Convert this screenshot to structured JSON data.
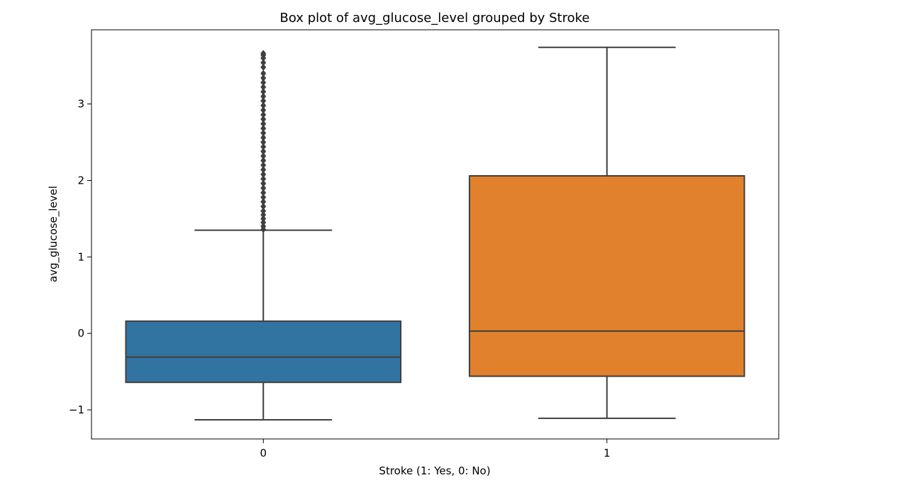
{
  "chart_data": {
    "type": "box",
    "title": "Box plot of avg_glucose_level grouped by Stroke",
    "xlabel": "Stroke (1: Yes, 0: No)",
    "ylabel": "avg_glucose_level",
    "categories": [
      "0",
      "1"
    ],
    "yticks": [
      "−1",
      "0",
      "1",
      "2",
      "3"
    ],
    "ylim": [
      -1.38,
      3.97
    ],
    "grid": false,
    "boxes": [
      {
        "category": "0",
        "color": "#3274a1",
        "whisker_low": -1.13,
        "q1": -0.64,
        "median": -0.31,
        "q3": 0.16,
        "whisker_high": 1.35,
        "outliers": [
          1.36,
          1.4,
          1.45,
          1.5,
          1.55,
          1.6,
          1.66,
          1.72,
          1.78,
          1.84,
          1.9,
          1.96,
          2.02,
          2.08,
          2.14,
          2.2,
          2.26,
          2.32,
          2.38,
          2.44,
          2.5,
          2.56,
          2.62,
          2.68,
          2.74,
          2.8,
          2.86,
          2.92,
          2.98,
          3.04,
          3.1,
          3.16,
          3.22,
          3.28,
          3.34,
          3.4,
          3.48,
          3.54,
          3.6,
          3.64,
          3.66
        ]
      },
      {
        "category": "1",
        "color": "#e1812c",
        "whisker_low": -1.11,
        "q1": -0.56,
        "median": 0.03,
        "q3": 2.06,
        "whisker_high": 3.74,
        "outliers": []
      }
    ]
  }
}
